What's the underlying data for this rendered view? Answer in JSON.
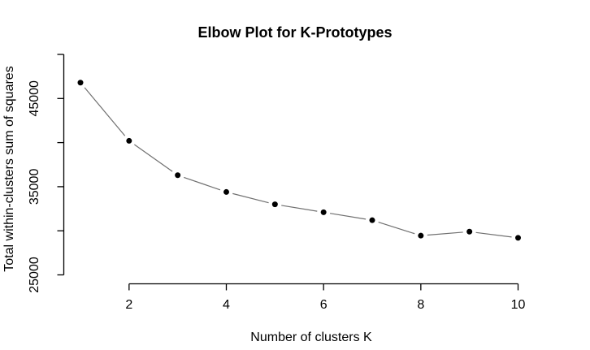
{
  "chart_data": {
    "type": "line",
    "title": "Elbow Plot for K-Prototypes",
    "xlabel": "Number of clusters K",
    "ylabel": "Total within-clusters sum of squares",
    "x": [
      1,
      2,
      3,
      4,
      5,
      6,
      7,
      8,
      9,
      10
    ],
    "values": [
      46800,
      40200,
      36300,
      34400,
      33000,
      32100,
      31200,
      29450,
      29900,
      29200
    ],
    "xlim": [
      1,
      10
    ],
    "ylim": [
      25000,
      50000
    ],
    "x_ticks": [
      2,
      4,
      6,
      8,
      10
    ],
    "y_ticks": [
      25000,
      30000,
      35000,
      40000,
      45000,
      50000
    ],
    "y_labeled_ticks": [
      25000,
      35000,
      45000
    ],
    "marker": "filled-circle",
    "line_style": "points-joined-with-gaps",
    "grid": false,
    "legend_position": "none",
    "colors": {
      "point": "#000000",
      "line": "#707070",
      "axis": "#000000",
      "text": "#000000",
      "background": "#ffffff"
    }
  }
}
